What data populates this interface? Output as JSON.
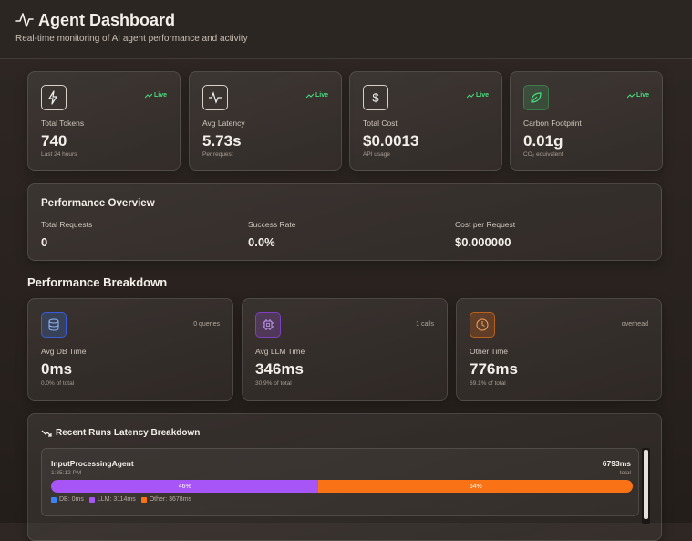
{
  "header": {
    "title": "Agent Dashboard",
    "subtitle": "Real-time monitoring of AI agent performance and activity"
  },
  "stat_cards": [
    {
      "label": "Total Tokens",
      "value": "740",
      "note": "Last 24 hours",
      "badge": "Live"
    },
    {
      "label": "Avg Latency",
      "value": "5.73s",
      "note": "Per request",
      "badge": "Live"
    },
    {
      "label": "Total Cost",
      "value": "$0.0013",
      "note": "API usage",
      "badge": "Live"
    },
    {
      "label": "Carbon Footprint",
      "value": "0.01g",
      "note": "CO₂ equivalent",
      "badge": "Live"
    }
  ],
  "overview": {
    "title": "Performance Overview",
    "metrics": [
      {
        "label": "Total Requests",
        "value": "0"
      },
      {
        "label": "Success Rate",
        "value": "0.0%"
      },
      {
        "label": "Cost per Request",
        "value": "$0.000000"
      }
    ]
  },
  "breakdown": {
    "title": "Performance Breakdown",
    "cards": [
      {
        "label": "Avg DB Time",
        "value": "0ms",
        "note": "0.0% of total",
        "tag": "0 queries"
      },
      {
        "label": "Avg LLM Time",
        "value": "346ms",
        "note": "30.9% of total",
        "tag": "1 calls"
      },
      {
        "label": "Other Time",
        "value": "776ms",
        "note": "69.1% of total",
        "tag": "overhead"
      }
    ]
  },
  "recent": {
    "title": "Recent Runs Latency Breakdown",
    "runs": [
      {
        "name": "InputProcessingAgent",
        "time": "1:35:12 PM",
        "total": "6793ms",
        "total_note": "total",
        "bar": {
          "values": [
            46,
            54
          ],
          "value_labels": [
            "46%",
            "54%"
          ],
          "colors": [
            "#a855f7",
            "#f97316"
          ]
        },
        "legend": [
          {
            "text": "DB: 0ms",
            "color": "#3b82f6"
          },
          {
            "text": "LLM: 3114ms",
            "color": "#a855f7"
          },
          {
            "text": "Other: 3678ms",
            "color": "#f97316"
          }
        ]
      }
    ]
  }
}
